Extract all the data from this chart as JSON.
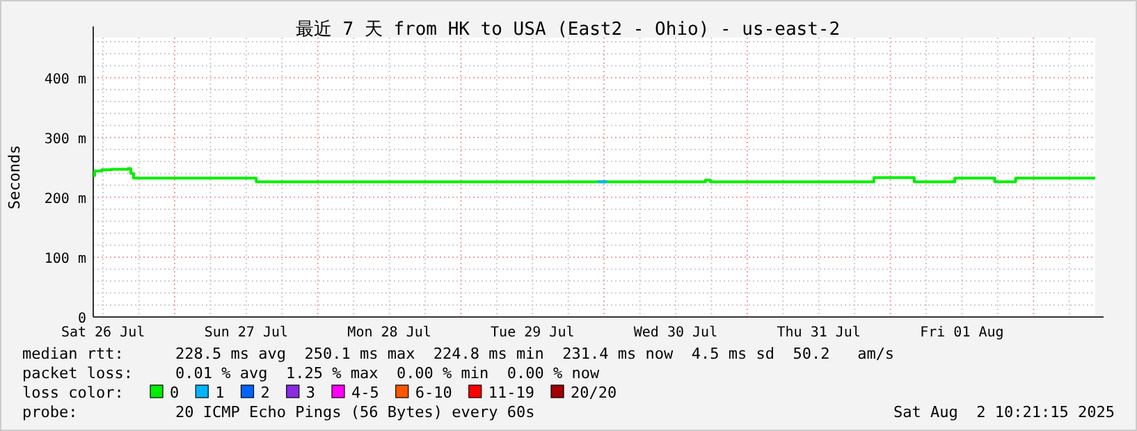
{
  "chart_data": {
    "type": "step",
    "title": "最近 7 天 from HK to USA (East2 - Ohio) - us-east-2",
    "ylabel": "Seconds",
    "legend_title": "loss color:",
    "legend": "bottom",
    "grid": true,
    "marker": "none",
    "line_style": "solid",
    "xlim": [
      "2025-07-26T10:21",
      "2025-08-02T10:21"
    ],
    "xticks": [
      {
        "value": "2025-07-26T12:00",
        "label": "Sat 26 Jul"
      },
      {
        "value": "2025-07-26T18:00",
        "label": null
      },
      {
        "value": "2025-07-27T00:00",
        "label": null
      },
      {
        "value": "2025-07-27T06:00",
        "label": null
      },
      {
        "value": "2025-07-27T12:00",
        "label": "Sun 27 Jul"
      },
      {
        "value": "2025-07-27T18:00",
        "label": null
      },
      {
        "value": "2025-07-28T00:00",
        "label": null
      },
      {
        "value": "2025-07-28T06:00",
        "label": null
      },
      {
        "value": "2025-07-28T12:00",
        "label": "Mon 28 Jul"
      },
      {
        "value": "2025-07-28T18:00",
        "label": null
      },
      {
        "value": "2025-07-29T00:00",
        "label": null
      },
      {
        "value": "2025-07-29T06:00",
        "label": null
      },
      {
        "value": "2025-07-29T12:00",
        "label": "Tue 29 Jul"
      },
      {
        "value": "2025-07-29T18:00",
        "label": null
      },
      {
        "value": "2025-07-30T00:00",
        "label": null
      },
      {
        "value": "2025-07-30T06:00",
        "label": null
      },
      {
        "value": "2025-07-30T12:00",
        "label": "Wed 30 Jul"
      },
      {
        "value": "2025-07-30T18:00",
        "label": null
      },
      {
        "value": "2025-07-31T00:00",
        "label": null
      },
      {
        "value": "2025-07-31T06:00",
        "label": null
      },
      {
        "value": "2025-07-31T12:00",
        "label": "Thu 31 Jul"
      },
      {
        "value": "2025-07-31T18:00",
        "label": null
      },
      {
        "value": "2025-08-01T00:00",
        "label": null
      },
      {
        "value": "2025-08-01T06:00",
        "label": null
      },
      {
        "value": "2025-08-01T12:00",
        "label": "Fri 01 Aug"
      },
      {
        "value": "2025-08-01T18:00",
        "label": null
      },
      {
        "value": "2025-08-02T00:00",
        "label": null
      },
      {
        "value": "2025-08-02T06:00",
        "label": null
      }
    ],
    "ylim": [
      0,
      467
    ],
    "yticks": [
      {
        "value": 0,
        "label": "0"
      },
      {
        "value": 20,
        "label": null
      },
      {
        "value": 40,
        "label": null
      },
      {
        "value": 60,
        "label": null
      },
      {
        "value": 80,
        "label": null
      },
      {
        "value": 100,
        "label": "100 m"
      },
      {
        "value": 120,
        "label": null
      },
      {
        "value": 140,
        "label": null
      },
      {
        "value": 160,
        "label": null
      },
      {
        "value": 180,
        "label": null
      },
      {
        "value": 200,
        "label": "200 m"
      },
      {
        "value": 220,
        "label": null
      },
      {
        "value": 240,
        "label": null
      },
      {
        "value": 260,
        "label": null
      },
      {
        "value": 280,
        "label": null
      },
      {
        "value": 300,
        "label": "300 m"
      },
      {
        "value": 320,
        "label": null
      },
      {
        "value": 340,
        "label": null
      },
      {
        "value": 360,
        "label": null
      },
      {
        "value": 380,
        "label": null
      },
      {
        "value": 400,
        "label": "400 m"
      },
      {
        "value": 420,
        "label": null
      },
      {
        "value": 440,
        "label": null
      },
      {
        "value": 460,
        "label": null
      }
    ],
    "series": [
      {
        "name": "0",
        "color": "#00ee00",
        "x": [
          "2025-07-26T10:21",
          "2025-07-26T10:35",
          "2025-07-26T11:45",
          "2025-07-26T13:23",
          "2025-07-26T16:11",
          "2025-07-26T16:39",
          "2025-07-26T17:07",
          "2025-07-27T13:41",
          "2025-07-30T17:00",
          "2025-07-30T17:48",
          "2025-07-31T21:14",
          "2025-08-01T04:00",
          "2025-08-01T10:48",
          "2025-08-01T17:30",
          "2025-08-01T21:00",
          "2025-08-02T10:21"
        ],
        "values": [
          236,
          244,
          246,
          247,
          248,
          240,
          232,
          226,
          229,
          226,
          233,
          226,
          232,
          226,
          232,
          232
        ]
      },
      {
        "name": "1",
        "type": "line",
        "color": "#00b4ff",
        "x": [
          "2025-07-29T23:00",
          "2025-07-30T00:30"
        ],
        "values": [
          226,
          226
        ]
      },
      {
        "name": "2",
        "color": "#0064ff"
      },
      {
        "name": "3",
        "color": "#8a2be2"
      },
      {
        "name": "4-5",
        "color": "#ff00ff"
      },
      {
        "name": "6-10",
        "color": "#ff5500"
      },
      {
        "name": "11-19",
        "color": "#ff0000"
      },
      {
        "name": "20/20",
        "color": "#a10000"
      }
    ],
    "annotations": [
      "median rtt:",
      "228.5 ms avg  250.1 ms max  224.8 ms min  231.4 ms now  4.5 ms sd  50.2   am/s",
      "packet loss:",
      "0.01 % avg  1.25 % max  0.00 % min  0.00 % now",
      "probe:",
      "20 ICMP Echo Pings (56 Bytes) every 60s",
      "Sat Aug  2 10:21:15 2025"
    ]
  }
}
